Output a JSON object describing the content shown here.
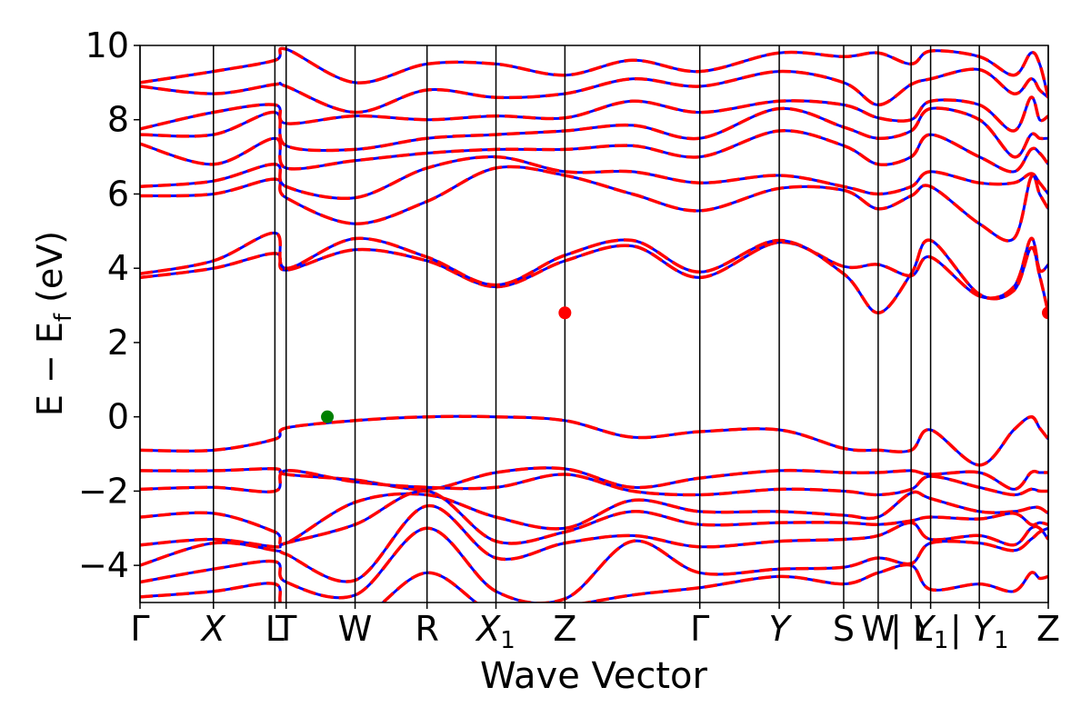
{
  "chart_data": {
    "type": "line",
    "xlabel": "Wave Vector",
    "ylabel": "E − E",
    "ylabel_sub": "f",
    "ylabel_unit": " (eV)",
    "ylim": [
      -5,
      10
    ],
    "yticks": [
      {
        "value": 10,
        "label": "10"
      },
      {
        "value": 8,
        "label": "8"
      },
      {
        "value": 6,
        "label": "6"
      },
      {
        "value": 4,
        "label": "4"
      },
      {
        "value": 2,
        "label": "2"
      },
      {
        "value": 0,
        "label": "0"
      },
      {
        "value": -2,
        "label": "−2"
      },
      {
        "value": -4,
        "label": "−4"
      }
    ],
    "xlim": [
      0,
      12.12
    ],
    "kpoints": [
      {
        "x": 0.0,
        "label": "Γ",
        "sub": ""
      },
      {
        "x": 0.98,
        "label": "X",
        "sub": ""
      },
      {
        "x": 1.8,
        "label": "L",
        "sub": ""
      },
      {
        "x": 1.95,
        "label": "T",
        "sub": ""
      },
      {
        "x": 2.87,
        "label": "W",
        "sub": ""
      },
      {
        "x": 3.83,
        "label": "R",
        "sub": ""
      },
      {
        "x": 4.75,
        "label": "X",
        "sub": "1"
      },
      {
        "x": 5.67,
        "label": "Z",
        "sub": ""
      },
      {
        "x": 7.47,
        "label": "Γ",
        "sub": ""
      },
      {
        "x": 8.53,
        "label": "Y",
        "sub": ""
      },
      {
        "x": 9.39,
        "label": "S",
        "sub": ""
      },
      {
        "x": 9.85,
        "label": "W",
        "sub": ""
      },
      {
        "x": 10.29,
        "label": "| L",
        "sub": ""
      },
      {
        "x": 10.55,
        "label": "Y",
        "sub": "1"
      },
      {
        "x": 11.2,
        "label": "| Y",
        "sub": "1"
      },
      {
        "x": 12.12,
        "label": "Z",
        "sub": ""
      }
    ],
    "series_styles": [
      {
        "name": "",
        "color": "#0000ff",
        "style": "solid"
      },
      {
        "name": "",
        "color": "#ff0000",
        "style": "dashed"
      }
    ],
    "bands": [
      [
        -0.9,
        -0.9,
        -0.6,
        -0.3,
        -0.1,
        0.0,
        0.0,
        -0.1,
        -0.55,
        -0.4,
        -0.35,
        -0.85,
        -0.9,
        -0.9,
        -0.35,
        -1.3,
        -0.35,
        0.0,
        -0.3,
        -0.6
      ],
      [
        -1.45,
        -1.45,
        -1.4,
        -1.55,
        -1.7,
        -1.95,
        -1.5,
        -1.4,
        -1.9,
        -1.65,
        -1.45,
        -1.5,
        -1.5,
        -1.45,
        -1.55,
        -1.5,
        -1.95,
        -1.5,
        -1.5,
        -1.5
      ],
      [
        -1.95,
        -1.9,
        -2.0,
        -1.45,
        -1.75,
        -1.9,
        -1.9,
        -1.55,
        -2.0,
        -2.1,
        -1.95,
        -2.0,
        -2.1,
        -1.95,
        -1.6,
        -1.9,
        -2.1,
        -1.95,
        -2.0,
        -2.0
      ],
      [
        -2.7,
        -2.6,
        -3.1,
        -3.4,
        -2.3,
        -2.1,
        -2.7,
        -3.0,
        -2.25,
        -2.55,
        -2.55,
        -2.65,
        -2.7,
        -2.05,
        -2.2,
        -2.55,
        -2.55,
        -2.45,
        -2.45,
        -2.6
      ],
      [
        -3.45,
        -3.3,
        -3.5,
        -3.4,
        -2.9,
        -2.0,
        -3.35,
        -3.1,
        -2.55,
        -2.9,
        -2.85,
        -2.85,
        -2.9,
        -2.8,
        -2.7,
        -2.75,
        -2.6,
        -2.9,
        -2.85,
        -2.9
      ],
      [
        -4.0,
        -3.4,
        -3.6,
        -3.7,
        -4.4,
        -2.4,
        -3.8,
        -3.4,
        -3.2,
        -3.5,
        -3.35,
        -3.3,
        -3.2,
        -2.85,
        -3.3,
        -3.2,
        -3.45,
        -3.0,
        -3.0,
        -3.3
      ],
      [
        -4.45,
        -4.1,
        -3.9,
        -4.45,
        -4.8,
        -3.0,
        -4.7,
        -4.9,
        -3.35,
        -4.2,
        -4.1,
        -4.05,
        -3.8,
        -3.95,
        -3.4,
        -3.4,
        -3.6,
        -3.3,
        -3.1,
        -3.0
      ],
      [
        -4.85,
        -4.7,
        -4.5,
        -5.2,
        -5.5,
        -4.2,
        -5.3,
        -5.1,
        -4.8,
        -4.6,
        -4.3,
        -4.5,
        -4.2,
        -4.0,
        -4.65,
        -4.5,
        -4.7,
        -4.2,
        -4.35,
        -4.3
      ],
      [
        3.75,
        4.0,
        4.4,
        3.95,
        4.5,
        4.2,
        3.5,
        4.2,
        4.6,
        3.75,
        4.7,
        4.05,
        4.1,
        3.8,
        4.3,
        3.25,
        3.5,
        4.8,
        3.95,
        4.1
      ],
      [
        3.85,
        4.2,
        4.95,
        4.0,
        4.8,
        4.3,
        3.55,
        4.35,
        4.75,
        3.9,
        4.75,
        3.85,
        2.8,
        3.85,
        4.75,
        3.3,
        3.4,
        4.55,
        3.8,
        2.8
      ],
      [
        5.95,
        6.0,
        6.4,
        5.9,
        5.2,
        5.8,
        6.7,
        6.5,
        6.0,
        5.55,
        6.15,
        6.1,
        5.6,
        5.95,
        6.2,
        5.2,
        4.8,
        6.45,
        6.0,
        5.6
      ],
      [
        6.2,
        6.35,
        6.8,
        6.2,
        5.9,
        6.7,
        7.0,
        6.6,
        6.6,
        6.3,
        6.5,
        6.2,
        6.0,
        6.2,
        6.6,
        6.3,
        6.3,
        6.55,
        6.3,
        6.0
      ],
      [
        7.35,
        6.8,
        7.5,
        6.7,
        6.9,
        7.1,
        7.2,
        7.2,
        7.3,
        7.0,
        7.7,
        7.3,
        6.8,
        7.0,
        7.6,
        7.0,
        6.6,
        7.2,
        7.1,
        6.8
      ],
      [
        7.6,
        7.6,
        8.2,
        7.3,
        7.2,
        7.5,
        7.6,
        7.7,
        7.85,
        7.5,
        8.3,
        7.8,
        7.5,
        7.7,
        8.3,
        8.0,
        7.0,
        7.6,
        7.5,
        7.5
      ],
      [
        7.75,
        8.2,
        8.4,
        7.9,
        8.1,
        8.0,
        8.1,
        8.05,
        8.5,
        8.2,
        8.5,
        8.4,
        8.05,
        8.0,
        8.5,
        8.4,
        7.7,
        8.6,
        8.0,
        8.1
      ],
      [
        8.9,
        8.7,
        8.95,
        8.9,
        8.2,
        8.8,
        8.6,
        8.7,
        9.1,
        8.9,
        9.3,
        9.0,
        8.4,
        8.95,
        9.1,
        9.35,
        8.7,
        9.1,
        8.8,
        8.6
      ],
      [
        9.0,
        9.3,
        9.6,
        9.9,
        9.0,
        9.5,
        9.5,
        9.2,
        9.6,
        9.3,
        9.8,
        9.7,
        9.8,
        9.5,
        9.85,
        9.7,
        9.2,
        9.8,
        9.5,
        8.6
      ]
    ],
    "markers": [
      {
        "x": 2.5,
        "y": 0.0,
        "color": "#008000"
      },
      {
        "x": 5.67,
        "y": 2.8,
        "color": "#ff0000"
      },
      {
        "x": 12.12,
        "y": 2.8,
        "color": "#ff0000"
      }
    ]
  }
}
